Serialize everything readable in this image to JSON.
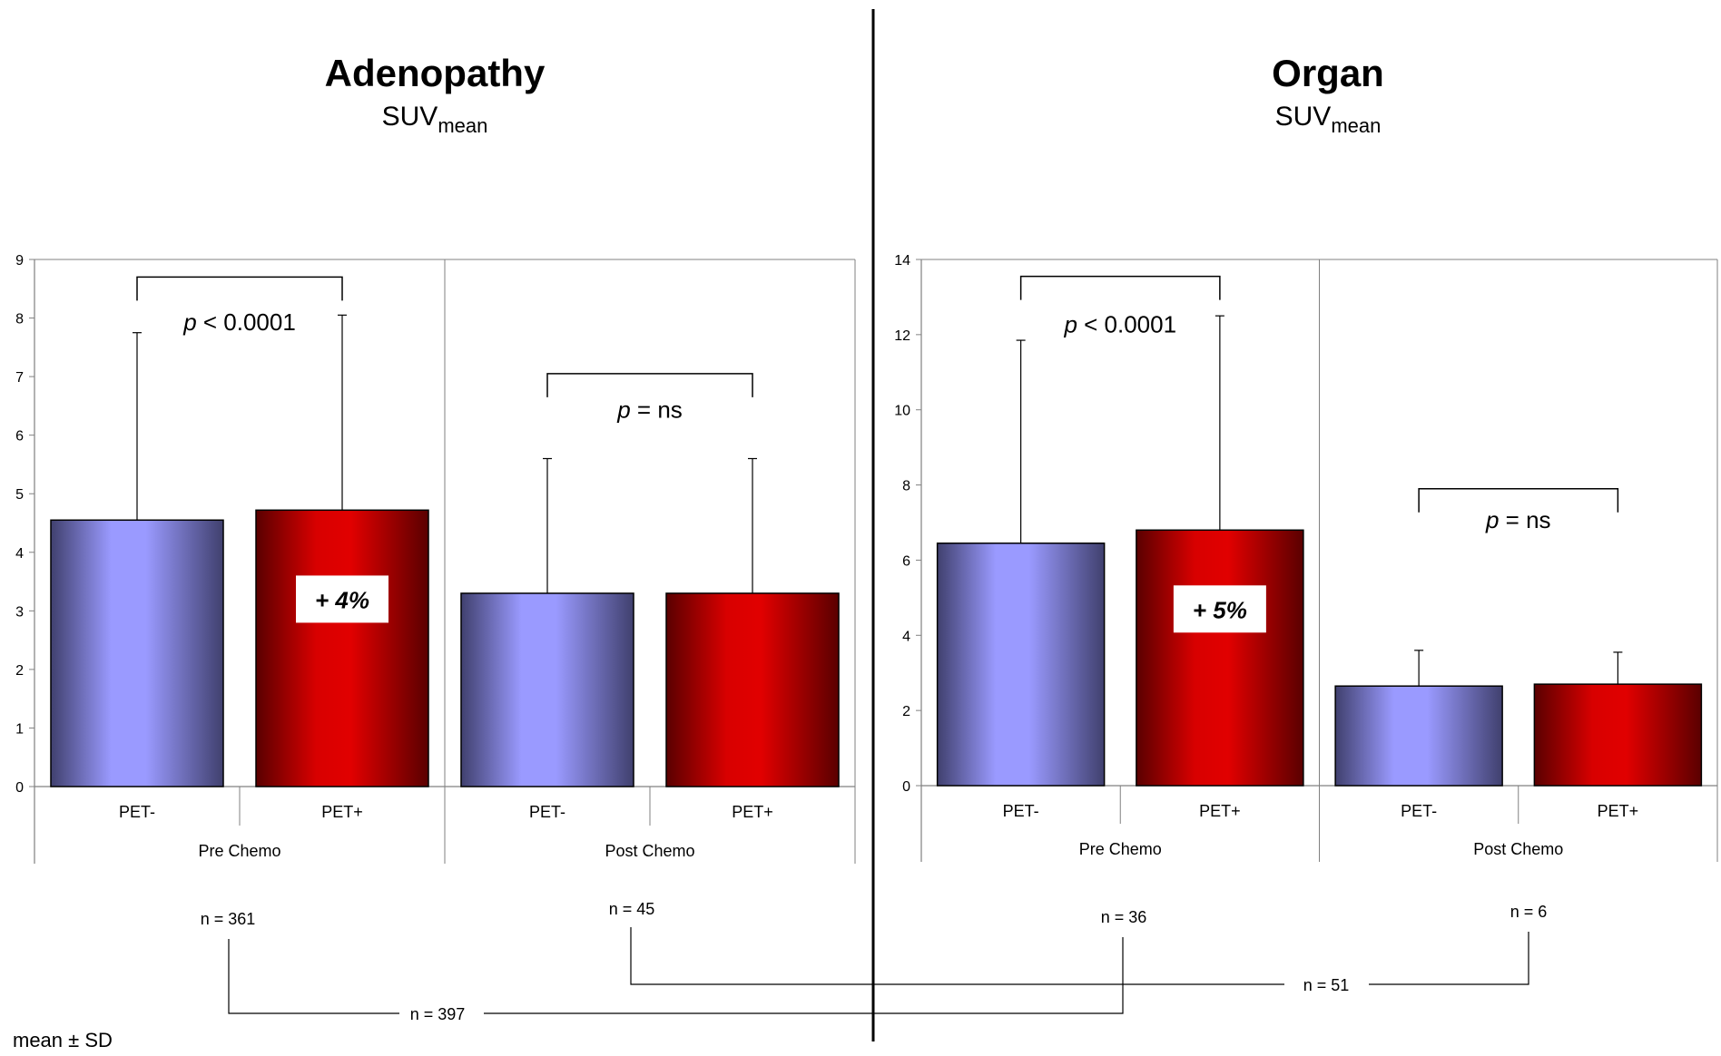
{
  "colors": {
    "pet_neg": "#9a9aff",
    "pet_pos": "#e10000",
    "axis": "#808080",
    "ink": "#000000"
  },
  "footnote": "mean ± SD",
  "n_labels": {
    "adeno_pre": "n = 361",
    "adeno_post": "n = 45",
    "organ_pre": "n = 36",
    "organ_post": "n = 6",
    "total_pre": "n = 397",
    "total_post": "n = 51"
  },
  "chart_data": [
    {
      "type": "bar",
      "title": "Adenopathy",
      "subtitle_main": "SUV",
      "subtitle_sub": "mean",
      "ylim": [
        0,
        9
      ],
      "yticks": [
        0,
        1,
        2,
        3,
        4,
        5,
        6,
        7,
        8,
        9
      ],
      "groups": [
        "Pre Chemo",
        "Post Chemo"
      ],
      "categories": [
        "PET-",
        "PET+",
        "PET-",
        "PET+"
      ],
      "values": [
        4.55,
        4.72,
        3.3,
        3.3
      ],
      "sd": [
        3.2,
        3.33,
        2.3,
        2.3
      ],
      "comparisons": [
        {
          "group": 0,
          "p_label": "p",
          "p_text": " < 0.0001",
          "bracket_y": 8.7,
          "text_y": 7.95
        },
        {
          "group": 1,
          "p_label": "p",
          "p_text": " = ns",
          "bracket_y": 7.05,
          "text_y": 6.45
        }
      ],
      "change_label": {
        "text": "+ 4%",
        "bar": 1,
        "y": 3.2
      }
    },
    {
      "type": "bar",
      "title": "Organ",
      "subtitle_main": "SUV",
      "subtitle_sub": "mean",
      "ylim": [
        0,
        14
      ],
      "yticks": [
        0,
        2,
        4,
        6,
        8,
        10,
        12,
        14
      ],
      "groups": [
        "Pre Chemo",
        "Post Chemo"
      ],
      "categories": [
        "PET-",
        "PET+",
        "PET-",
        "PET+"
      ],
      "values": [
        6.45,
        6.8,
        2.65,
        2.7
      ],
      "sd": [
        5.4,
        5.7,
        0.95,
        0.85
      ],
      "comparisons": [
        {
          "group": 0,
          "p_label": "p",
          "p_text": " < 0.0001",
          "bracket_y": 13.55,
          "text_y": 12.3
        },
        {
          "group": 1,
          "p_label": "p",
          "p_text": " = ns",
          "bracket_y": 7.9,
          "text_y": 7.1
        }
      ],
      "change_label": {
        "text": "+ 5%",
        "bar": 1,
        "y": 4.7
      }
    }
  ]
}
